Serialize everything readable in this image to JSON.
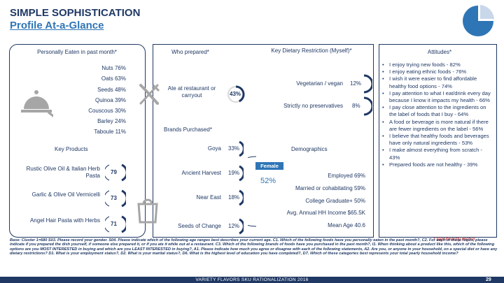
{
  "header": {
    "title_line1": "SIMPLE SOPHISTICATION",
    "title_line2": "Profile At-a-Glance"
  },
  "colors": {
    "navy": "#1f3864",
    "blue": "#2e75b6",
    "red": "#c00000"
  },
  "eaten": {
    "heading": "Personally Eaten in past month*",
    "items": [
      {
        "label": "Nuts 76%",
        "value": 0.76
      },
      {
        "label": "Oats 63%",
        "value": 0.63
      },
      {
        "label": "Seeds 48%",
        "value": 0.48
      },
      {
        "label": "Quinoa 39%",
        "value": 0.39
      },
      {
        "label": "Couscous 30%",
        "value": 0.3
      },
      {
        "label": "Barley 24%",
        "value": 0.24
      },
      {
        "label": "Taboule 11%",
        "value": 0.11
      }
    ]
  },
  "key_products": {
    "heading": "Key Products",
    "items": [
      {
        "name": "Rustic Olive Oil & Italian Herb Pasta",
        "value": "79"
      },
      {
        "name": "Garlic & Olive Oil Vermicelli",
        "value": "73"
      },
      {
        "name": "Angel Hair Pasta with Herbs",
        "value": "71"
      }
    ]
  },
  "who_prepared": {
    "heading": "Who prepared*",
    "label": "Ate at restaurant or carryout",
    "value": "43%",
    "fraction": 0.43
  },
  "brands": {
    "heading": "Brands Purchased*",
    "items": [
      {
        "name": "Goya",
        "value": "33%",
        "fraction": 0.33
      },
      {
        "name": "Ancient Harvest",
        "value": "19%",
        "fraction": 0.19
      },
      {
        "name": "Near East",
        "value": "18%",
        "fraction": 0.18
      },
      {
        "name": "Seeds of Change",
        "value": "12%",
        "fraction": 0.12
      }
    ]
  },
  "dietary": {
    "heading": "Key Dietary Restriction (Myself)*",
    "items": [
      {
        "name": "Vegetarian / vegan",
        "value": "12%"
      },
      {
        "name": "Strictly no preservatives",
        "value": "8%"
      }
    ]
  },
  "demographics": {
    "heading": "Demographics",
    "female_label": "Female",
    "female_pct": "52%",
    "items": [
      "Employed 69%",
      "Married or cohabitating 59%",
      "College Graduate+ 50%",
      "Avg. Annual HH Income $65.5K",
      "Mean Age 40.6"
    ]
  },
  "attitudes": {
    "heading": "Attitudes*",
    "items": [
      "I enjoy trying new foods - 82%",
      "I enjoy eating ethnic foods - 76%",
      "I wish it were easier to find affordable healthy food options - 74%",
      "I pay attention to what I eat/drink every day because I know it impacts my health - 66%",
      "I pay close attention to the ingredients on the label of foods that I buy - 64%",
      "A food or beverage is more natural if there are fewer ingredients on the label - 56%",
      "I believe that healthy foods and beverages have only natural ingredients - 53%",
      "I make almost everything from scratch - 43%",
      "Prepared foods are not healthy - 39%"
    ]
  },
  "significance": "* Significantly Higher",
  "footnote": "Base: Cluster 1=680 S03. Please record your gender. S04. Please indicate which of the following age ranges best describes your current age. C1. Which of the following foods have you personally eaten in the past month?, C2. For each of these foods, please indicate if you prepared the dish yourself, if someone else prepared it, or if you ate it while out at a restaurant. C3. Which of the following brands of foods have you purchased in the past month?, I1. When thinking about a product like this, which of the following options are you MOST INTERESTED in buying and which are you LEAST INTERESTED in buying?, A1. Please indicate how much you agree or disagree with each of the following statements, A2. Are you, or anyone in your household, on a special diet or have any dietary restrictions? D1. What is your employment status?, D2. What is your marital status?, D6. What is the highest level of education you have completed?, D7. Which of these categories best represents your total yearly household income?",
  "footer": {
    "text": "VARIETY FLAVORS SKU RATIONALIZATION 2016",
    "page": "29"
  }
}
